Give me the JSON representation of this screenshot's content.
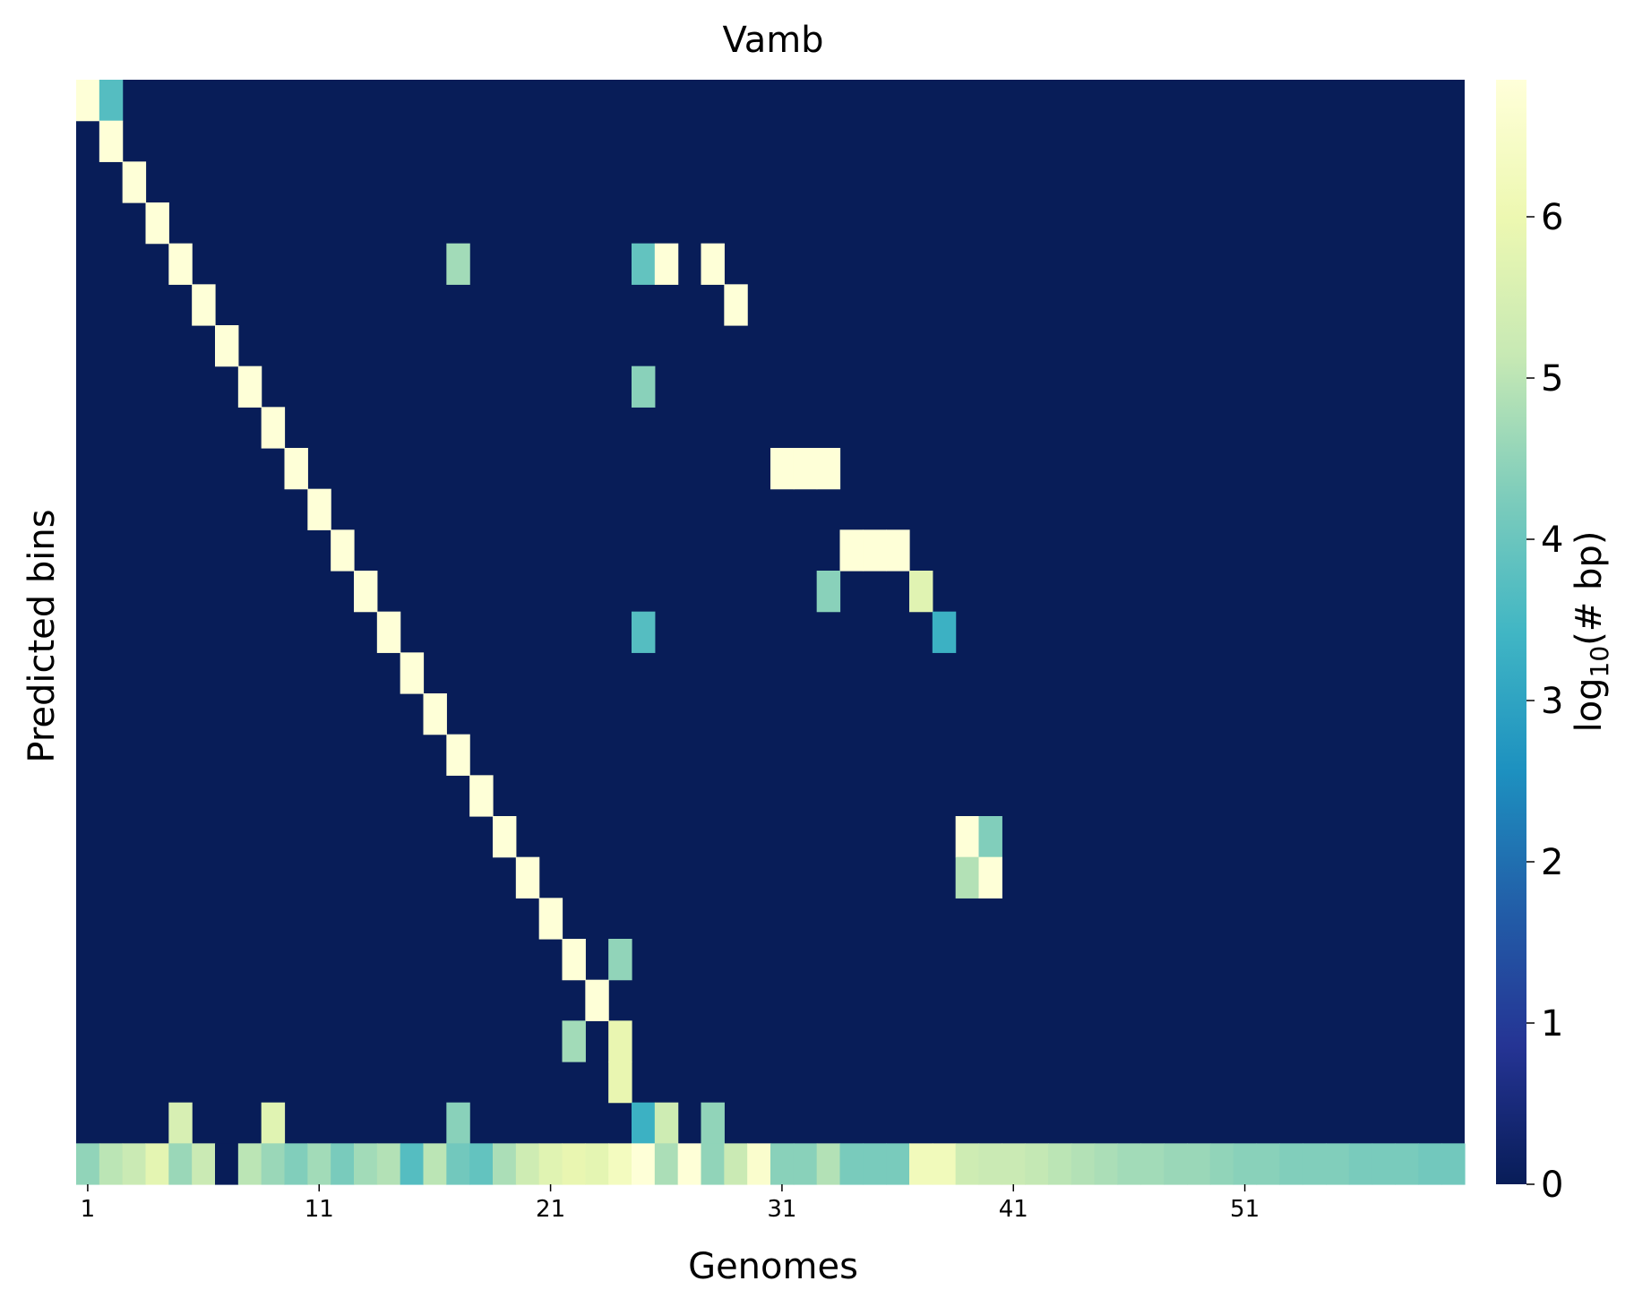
{
  "chart_data": {
    "type": "heatmap",
    "title": "Vamb",
    "xlabel": "Genomes",
    "ylabel": "Predicted bins",
    "x_tick_labels": [
      "1",
      "11",
      "21",
      "31",
      "41",
      "51"
    ],
    "x_tick_indices": [
      0,
      10,
      20,
      30,
      40,
      50
    ],
    "n_cols": 60,
    "n_rows": 27,
    "colormap": "YlGnBu",
    "colormap_stops": [
      "#081d58",
      "#253494",
      "#225ea8",
      "#1d91c0",
      "#41b6c4",
      "#7fcdbb",
      "#c7e9b4",
      "#edf8b1",
      "#ffffd9"
    ],
    "background_value": 0,
    "cells": [
      [
        0,
        0,
        6.8
      ],
      [
        0,
        1,
        3.7
      ],
      [
        1,
        1,
        6.8
      ],
      [
        2,
        2,
        6.8
      ],
      [
        3,
        3,
        6.8
      ],
      [
        4,
        4,
        6.8
      ],
      [
        4,
        16,
        4.7
      ],
      [
        4,
        24,
        3.9
      ],
      [
        4,
        25,
        6.8
      ],
      [
        4,
        27,
        6.8
      ],
      [
        5,
        5,
        6.8
      ],
      [
        5,
        28,
        6.8
      ],
      [
        6,
        6,
        6.8
      ],
      [
        7,
        7,
        6.8
      ],
      [
        7,
        24,
        4.4
      ],
      [
        8,
        8,
        6.8
      ],
      [
        9,
        9,
        6.8
      ],
      [
        9,
        30,
        6.8
      ],
      [
        9,
        31,
        6.8
      ],
      [
        9,
        32,
        6.8
      ],
      [
        10,
        10,
        6.8
      ],
      [
        11,
        11,
        6.8
      ],
      [
        11,
        33,
        6.8
      ],
      [
        11,
        34,
        6.8
      ],
      [
        11,
        35,
        6.8
      ],
      [
        12,
        12,
        6.8
      ],
      [
        12,
        32,
        4.4
      ],
      [
        12,
        36,
        5.7
      ],
      [
        13,
        13,
        6.8
      ],
      [
        13,
        24,
        3.7
      ],
      [
        13,
        37,
        3.3
      ],
      [
        14,
        14,
        6.8
      ],
      [
        15,
        15,
        6.8
      ],
      [
        16,
        16,
        6.8
      ],
      [
        17,
        17,
        6.8
      ],
      [
        18,
        18,
        6.8
      ],
      [
        18,
        38,
        6.8
      ],
      [
        18,
        39,
        4.3
      ],
      [
        19,
        19,
        6.8
      ],
      [
        19,
        38,
        4.9
      ],
      [
        19,
        39,
        6.8
      ],
      [
        20,
        20,
        6.8
      ],
      [
        21,
        21,
        6.8
      ],
      [
        21,
        23,
        4.5
      ],
      [
        22,
        22,
        6.8
      ],
      [
        23,
        21,
        4.7
      ],
      [
        23,
        23,
        5.9
      ],
      [
        24,
        23,
        5.9
      ],
      [
        25,
        4,
        5.5
      ],
      [
        25,
        8,
        5.7
      ],
      [
        25,
        16,
        4.4
      ],
      [
        25,
        24,
        3.3
      ],
      [
        25,
        25,
        5.3
      ],
      [
        25,
        27,
        4.5
      ]
    ],
    "bottom_row": [
      4.5,
      5.0,
      5.2,
      5.8,
      4.6,
      5.2,
      0,
      5.0,
      4.6,
      4.3,
      4.7,
      4.2,
      4.7,
      4.9,
      3.7,
      5.0,
      4.1,
      3.9,
      4.8,
      5.3,
      5.7,
      5.9,
      5.8,
      6.3,
      6.8,
      4.8,
      6.8,
      4.5,
      5.2,
      6.6,
      4.4,
      4.4,
      4.9,
      4.2,
      4.2,
      4.2,
      6.2,
      6.2,
      5.3,
      5.2,
      5.2,
      5.1,
      5.0,
      4.9,
      4.8,
      4.7,
      4.7,
      4.6,
      4.6,
      4.5,
      4.4,
      4.4,
      4.3,
      4.3,
      4.3,
      4.2,
      4.2,
      4.2,
      4.1,
      4.1
    ],
    "colorbar": {
      "label_prefix": "log",
      "label_sub": "10",
      "label_suffix": "(# bp)",
      "min": 0,
      "max": 6.85,
      "ticks": [
        "0",
        "1",
        "2",
        "3",
        "4",
        "5",
        "6"
      ]
    }
  }
}
